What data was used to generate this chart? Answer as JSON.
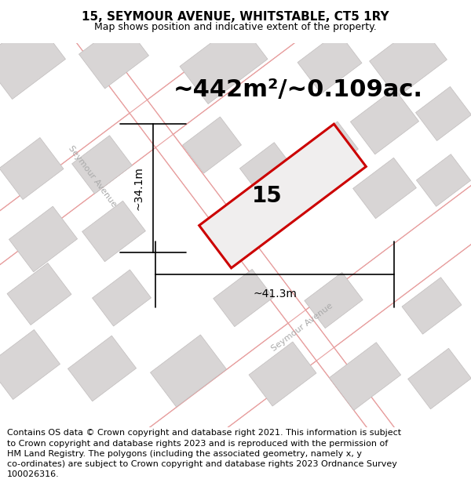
{
  "title": "15, SEYMOUR AVENUE, WHITSTABLE, CT5 1RY",
  "subtitle": "Map shows position and indicative extent of the property.",
  "area_text": "~442m²/~0.109ac.",
  "property_number": "15",
  "dim_width": "~41.3m",
  "dim_height": "~34.1m",
  "footer_line1": "Contains OS data © Crown copyright and database right 2021. This information is subject",
  "footer_line2": "to Crown copyright and database rights 2023 and is reproduced with the permission of",
  "footer_line3": "HM Land Registry. The polygons (including the associated geometry, namely x, y",
  "footer_line4": "co-ordinates) are subject to Crown copyright and database rights 2023 Ordnance Survey",
  "footer_line5": "100026316.",
  "map_bg": "#f0eeee",
  "road_fill": "#ffffff",
  "road_edge": "#e8a0a0",
  "building_fill": "#d8d5d5",
  "building_edge": "#c0bcbc",
  "property_fill": "#f0eeee",
  "property_edge": "#cc0000",
  "street_label_color": "#aaaaaa",
  "title_fontsize": 11,
  "subtitle_fontsize": 9,
  "area_fontsize": 22,
  "number_fontsize": 20,
  "dim_fontsize": 10,
  "street_fontsize": 8,
  "footer_fontsize": 8
}
